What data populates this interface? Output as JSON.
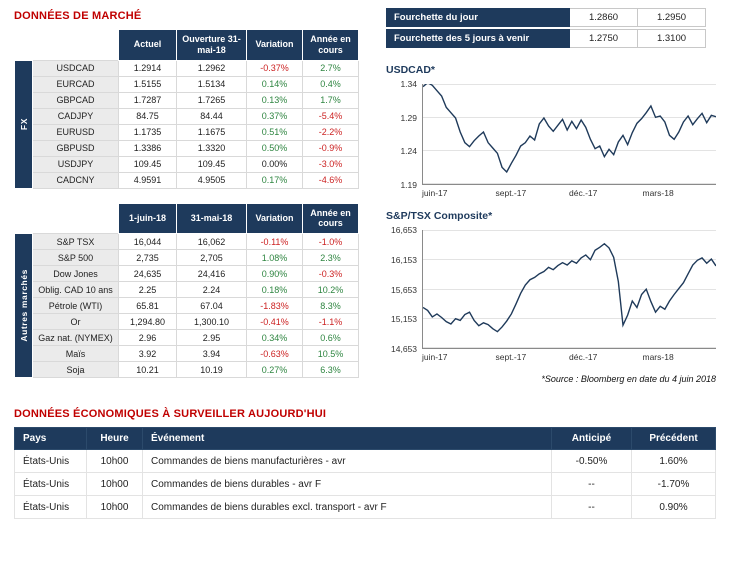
{
  "titles": {
    "market": "DONNÉES DE MARCHÉ",
    "econ": "DONNÉES ÉCONOMIQUES À SURVEILLER AUJOURD'HUI",
    "source": "*Source : Bloomberg en date du  4 juin 2018"
  },
  "colors": {
    "navy": "#1e3a5c",
    "title_red": "#c00000",
    "positive_green": "#2e8540",
    "negative_red": "#cc2222",
    "chart_line": "#1f3a5a"
  },
  "fx": {
    "group": "FX",
    "headers": [
      "Actuel",
      "Ouverture 31-mai-18",
      "Variation",
      "Année en cours"
    ],
    "rows": [
      {
        "label": "USDCAD",
        "c1": "1.2914",
        "c2": "1.2962",
        "var": "-0.37%",
        "vdir": "neg",
        "ytd": "2.7%",
        "ydir": "pos"
      },
      {
        "label": "EURCAD",
        "c1": "1.5155",
        "c2": "1.5134",
        "var": "0.14%",
        "vdir": "pos",
        "ytd": "0.4%",
        "ydir": "pos"
      },
      {
        "label": "GBPCAD",
        "c1": "1.7287",
        "c2": "1.7265",
        "var": "0.13%",
        "vdir": "pos",
        "ytd": "1.7%",
        "ydir": "pos"
      },
      {
        "label": "CADJPY",
        "c1": "84.75",
        "c2": "84.44",
        "var": "0.37%",
        "vdir": "pos",
        "ytd": "-5.4%",
        "ydir": "neg"
      },
      {
        "label": "EURUSD",
        "c1": "1.1735",
        "c2": "1.1675",
        "var": "0.51%",
        "vdir": "pos",
        "ytd": "-2.2%",
        "ydir": "neg"
      },
      {
        "label": "GBPUSD",
        "c1": "1.3386",
        "c2": "1.3320",
        "var": "0.50%",
        "vdir": "pos",
        "ytd": "-0.9%",
        "ydir": "neg"
      },
      {
        "label": "USDJPY",
        "c1": "109.45",
        "c2": "109.45",
        "var": "0.00%",
        "vdir": "flat",
        "ytd": "-3.0%",
        "ydir": "neg"
      },
      {
        "label": "CADCNY",
        "c1": "4.9591",
        "c2": "4.9505",
        "var": "0.17%",
        "vdir": "pos",
        "ytd": "-4.6%",
        "ydir": "neg"
      }
    ]
  },
  "markets": {
    "group": "Autres marchés",
    "headers": [
      "1-juin-18",
      "31-mai-18",
      "Variation",
      "Année en cours"
    ],
    "rows": [
      {
        "label": "S&P TSX",
        "c1": "16,044",
        "c2": "16,062",
        "var": "-0.11%",
        "vdir": "neg",
        "ytd": "-1.0%",
        "ydir": "neg"
      },
      {
        "label": "S&P 500",
        "c1": "2,735",
        "c2": "2,705",
        "var": "1.08%",
        "vdir": "pos",
        "ytd": "2.3%",
        "ydir": "pos"
      },
      {
        "label": "Dow Jones",
        "c1": "24,635",
        "c2": "24,416",
        "var": "0.90%",
        "vdir": "pos",
        "ytd": "-0.3%",
        "ydir": "neg"
      },
      {
        "label": "Oblig. CAD 10 ans",
        "c1": "2.25",
        "c2": "2.24",
        "var": "0.18%",
        "vdir": "pos",
        "ytd": "10.2%",
        "ydir": "pos"
      },
      {
        "label": "Pétrole (WTI)",
        "c1": "65.81",
        "c2": "67.04",
        "var": "-1.83%",
        "vdir": "neg",
        "ytd": "8.3%",
        "ydir": "pos"
      },
      {
        "label": "Or",
        "c1": "1,294.80",
        "c2": "1,300.10",
        "var": "-0.41%",
        "vdir": "neg",
        "ytd": "-1.1%",
        "ydir": "neg"
      },
      {
        "label": "Gaz nat. (NYMEX)",
        "c1": "2.96",
        "c2": "2.95",
        "var": "0.34%",
        "vdir": "pos",
        "ytd": "0.6%",
        "ydir": "pos"
      },
      {
        "label": "Maïs",
        "c1": "3.92",
        "c2": "3.94",
        "var": "-0.63%",
        "vdir": "neg",
        "ytd": "10.5%",
        "ydir": "pos"
      },
      {
        "label": "Soja",
        "c1": "10.21",
        "c2": "10.19",
        "var": "0.27%",
        "vdir": "pos",
        "ytd": "6.3%",
        "ydir": "pos"
      }
    ]
  },
  "fourchette": {
    "rows": [
      {
        "label": "Fourchette du jour",
        "low": "1.2860",
        "high": "1.2950"
      },
      {
        "label": "Fourchette des 5 jours à venir",
        "low": "1.2750",
        "high": "1.3100"
      }
    ]
  },
  "econ": {
    "headers": [
      "Pays",
      "Heure",
      "Événement",
      "Anticipé",
      "Précédent"
    ],
    "rows": [
      {
        "pays": "États-Unis",
        "heure": "10h00",
        "evenement": "Commandes de biens manufacturières - avr",
        "anticipe": "-0.50%",
        "precedent": "1.60%"
      },
      {
        "pays": "États-Unis",
        "heure": "10h00",
        "evenement": "Commandes de biens durables - avr F",
        "anticipe": "--",
        "precedent": "-1.70%"
      },
      {
        "pays": "États-Unis",
        "heure": "10h00",
        "evenement": "Commandes de biens durables excl. transport - avr F",
        "anticipe": "--",
        "precedent": "0.90%"
      }
    ]
  },
  "chart_data": [
    {
      "type": "line",
      "title": "USDCAD*",
      "x_ticks": [
        "juin-17",
        "sept.-17",
        "déc.-17",
        "mars-18"
      ],
      "y_ticks": [
        "1.34",
        "1.29",
        "1.24",
        "1.19"
      ],
      "ylim": [
        1.19,
        1.34
      ],
      "series": [
        {
          "name": "USDCAD",
          "values": [
            1.336,
            1.342,
            1.338,
            1.33,
            1.322,
            1.305,
            1.297,
            1.289,
            1.268,
            1.252,
            1.246,
            1.255,
            1.262,
            1.268,
            1.252,
            1.244,
            1.236,
            1.215,
            1.208,
            1.221,
            1.233,
            1.247,
            1.252,
            1.262,
            1.256,
            1.28,
            1.289,
            1.277,
            1.269,
            1.278,
            1.287,
            1.271,
            1.284,
            1.273,
            1.286,
            1.275,
            1.257,
            1.243,
            1.247,
            1.231,
            1.242,
            1.234,
            1.253,
            1.263,
            1.249,
            1.267,
            1.281,
            1.288,
            1.297,
            1.307,
            1.29,
            1.292,
            1.283,
            1.263,
            1.257,
            1.268,
            1.283,
            1.292,
            1.279,
            1.288,
            1.296,
            1.282,
            1.293,
            1.291
          ]
        }
      ]
    },
    {
      "type": "line",
      "title": "S&P/TSX Composite*",
      "x_ticks": [
        "juin-17",
        "sept.-17",
        "déc.-17",
        "mars-18"
      ],
      "y_ticks": [
        "16,653",
        "16,153",
        "15,653",
        "15,153",
        "14,653"
      ],
      "ylim": [
        14653,
        16653
      ],
      "series": [
        {
          "name": "S&P/TSX Composite",
          "values": [
            15340,
            15290,
            15180,
            15230,
            15170,
            15100,
            15060,
            15150,
            15120,
            15220,
            15260,
            15120,
            15030,
            15080,
            15050,
            14980,
            14930,
            15010,
            15110,
            15230,
            15400,
            15580,
            15720,
            15810,
            15850,
            15910,
            15950,
            16020,
            15980,
            16050,
            16100,
            16060,
            16130,
            16090,
            16180,
            16230,
            16150,
            16310,
            16360,
            16420,
            16350,
            16190,
            15780,
            15040,
            15210,
            15450,
            15340,
            15560,
            15650,
            15440,
            15260,
            15360,
            15310,
            15450,
            15560,
            15660,
            15760,
            15910,
            16060,
            16140,
            16180,
            16090,
            16160,
            16044
          ]
        }
      ]
    }
  ]
}
